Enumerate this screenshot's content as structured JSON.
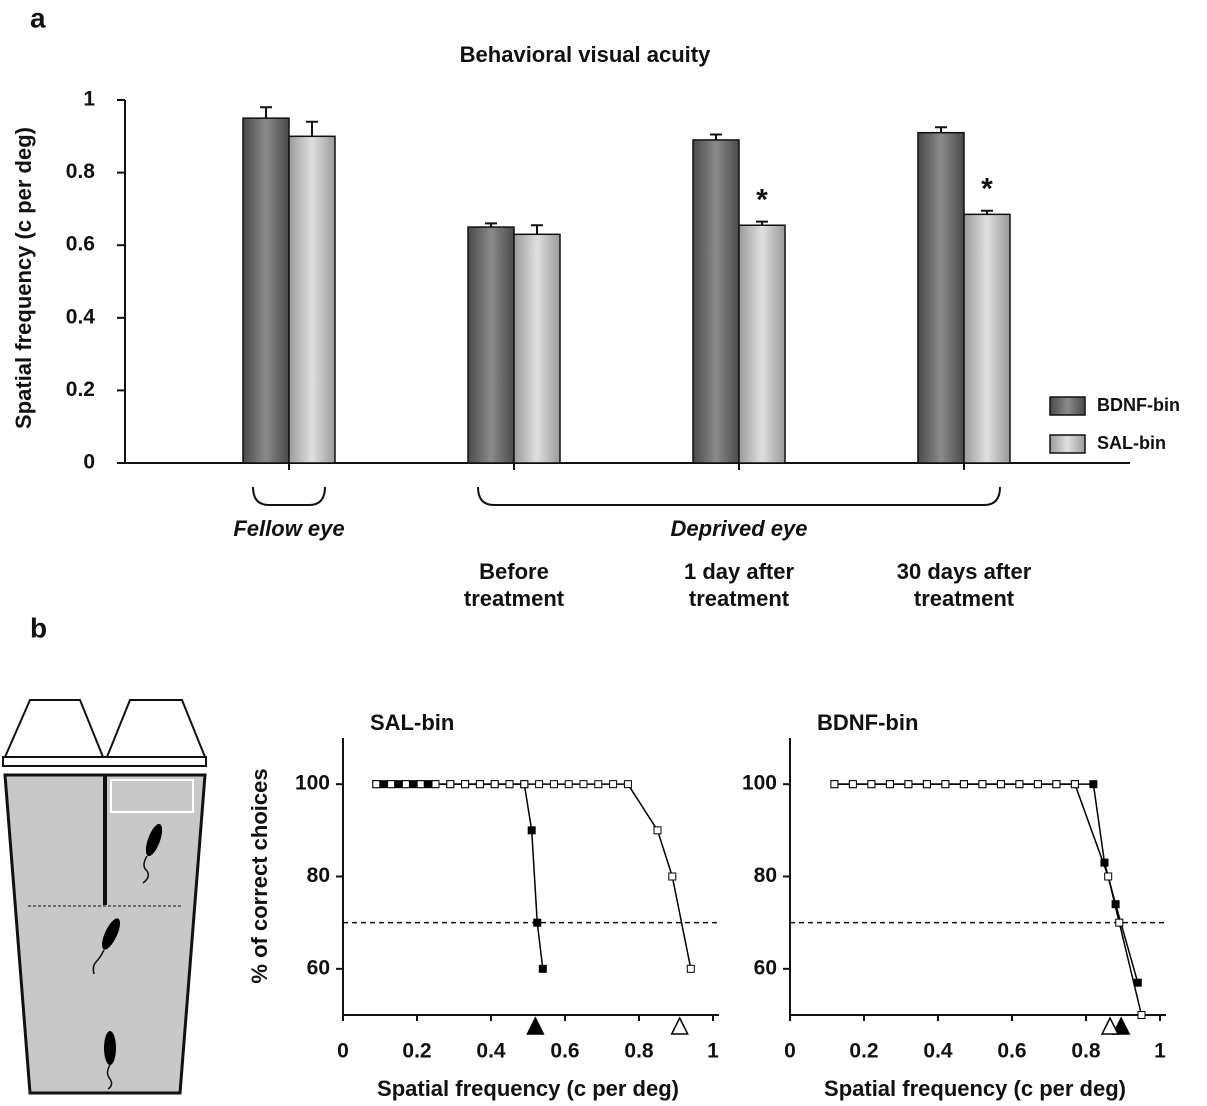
{
  "panel_labels": [
    "a",
    "b"
  ],
  "chart_data": [
    {
      "type": "bar",
      "title": "Behavioral visual acuity",
      "y_label": "Spatial frequency (c per deg)",
      "categories": [
        null,
        "Before\ntreatment",
        "1 day after\ntreatment",
        "30 days after\ntreatment"
      ],
      "category_groups": [
        {
          "label": "Fellow eye",
          "categories": [
            0
          ]
        },
        {
          "label": "Deprived eye",
          "categories": [
            1,
            2,
            3
          ]
        }
      ],
      "series": [
        {
          "name": "BDNF-bin",
          "color": "#6e6e6e",
          "values": [
            0.95,
            0.65,
            0.89,
            0.91
          ],
          "errors": [
            0.03,
            0.01,
            0.015,
            0.015
          ]
        },
        {
          "name": "SAL-bin",
          "color": "#bdbdbd",
          "values": [
            0.9,
            0.63,
            0.655,
            0.685
          ],
          "errors": [
            0.04,
            0.025,
            0.01,
            0.01
          ]
        }
      ],
      "annotations": [
        {
          "series": 1,
          "category": 2,
          "label": "*"
        },
        {
          "series": 1,
          "category": 3,
          "label": "*"
        }
      ],
      "ylim": [
        0,
        1
      ],
      "yticks": [
        0,
        0.2,
        0.4,
        0.6,
        0.8,
        1
      ],
      "legend": "right"
    },
    {
      "type": "line",
      "title": "SAL-bin",
      "x_label": "Spatial frequency (c per deg)",
      "y_label": "% of correct choices",
      "series": [
        {
          "color": "#000000",
          "fill": "#000000",
          "threshold": 0.52,
          "x": [
            0.09,
            0.11,
            0.13,
            0.15,
            0.17,
            0.19,
            0.21,
            0.23,
            0.25,
            0.29,
            0.33,
            0.37,
            0.41,
            0.45,
            0.49,
            0.51,
            0.525,
            0.54
          ],
          "values": [
            100,
            100,
            100,
            100,
            100,
            100,
            100,
            100,
            100,
            100,
            100,
            100,
            100,
            100,
            100,
            90,
            70,
            60
          ]
        },
        {
          "color": "#000000",
          "fill": "#ffffff",
          "threshold": 0.91,
          "x": [
            0.09,
            0.13,
            0.17,
            0.21,
            0.25,
            0.29,
            0.33,
            0.37,
            0.41,
            0.45,
            0.49,
            0.53,
            0.57,
            0.61,
            0.65,
            0.69,
            0.73,
            0.77,
            0.85,
            0.89,
            0.94
          ],
          "values": [
            100,
            100,
            100,
            100,
            100,
            100,
            100,
            100,
            100,
            100,
            100,
            100,
            100,
            100,
            100,
            100,
            100,
            100,
            90,
            80,
            60
          ]
        }
      ],
      "hline": 70,
      "xlim": [
        0,
        1
      ],
      "xticks": [
        0,
        0.2,
        0.4,
        0.6,
        0.8,
        1
      ],
      "ylim": [
        50,
        110
      ],
      "yticks": [
        60,
        80,
        100
      ]
    },
    {
      "type": "line",
      "title": "BDNF-bin",
      "x_label": "Spatial frequency (c per deg)",
      "series": [
        {
          "color": "#000000",
          "fill": "#000000",
          "threshold": 0.895,
          "x": [
            0.12,
            0.17,
            0.22,
            0.27,
            0.32,
            0.37,
            0.42,
            0.47,
            0.52,
            0.57,
            0.62,
            0.67,
            0.72,
            0.77,
            0.82,
            0.85,
            0.88,
            0.94
          ],
          "values": [
            100,
            100,
            100,
            100,
            100,
            100,
            100,
            100,
            100,
            100,
            100,
            100,
            100,
            100,
            100,
            83,
            74,
            57
          ]
        },
        {
          "color": "#000000",
          "fill": "#ffffff",
          "threshold": 0.865,
          "x": [
            0.12,
            0.17,
            0.22,
            0.27,
            0.32,
            0.37,
            0.42,
            0.47,
            0.52,
            0.57,
            0.62,
            0.67,
            0.72,
            0.77,
            0.86,
            0.89,
            0.95
          ],
          "values": [
            100,
            100,
            100,
            100,
            100,
            100,
            100,
            100,
            100,
            100,
            100,
            100,
            100,
            100,
            80,
            70,
            50
          ]
        }
      ],
      "hline": 70,
      "xlim": [
        0,
        1
      ],
      "xticks": [
        0,
        0.2,
        0.4,
        0.6,
        0.8,
        1
      ],
      "ylim": [
        50,
        110
      ],
      "yticks": [
        60,
        80,
        100
      ]
    }
  ]
}
